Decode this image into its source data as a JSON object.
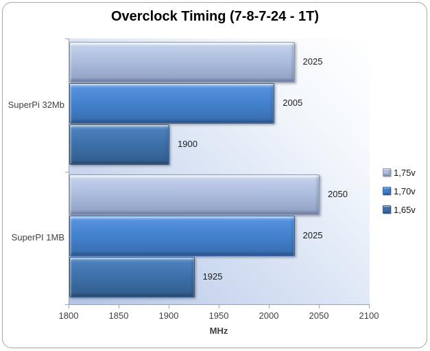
{
  "chart_data": {
    "type": "bar",
    "orientation": "horizontal",
    "title": "Overclock Timing (7-8-7-24 - 1T)",
    "categories": [
      "SuperPi 32Mb",
      "SuperPI 1MB"
    ],
    "series": [
      {
        "name": "1,75v",
        "values": [
          2025,
          2050
        ],
        "color": "#aebedf"
      },
      {
        "name": "1,70v",
        "values": [
          2005,
          2025
        ],
        "color": "#4381cd"
      },
      {
        "name": "1,65v",
        "values": [
          1900,
          1925
        ],
        "color": "#3d6fa9"
      }
    ],
    "xlabel": "MHz",
    "xlim": [
      1800,
      2100
    ],
    "xticks": [
      1800,
      1850,
      1900,
      1950,
      2000,
      2050,
      2100
    ],
    "data_labels_shown": true,
    "legend_position": "right",
    "grid": false,
    "plot_fill_gradient": [
      "#b3c5e6",
      "#ffffff"
    ],
    "frame_border_color": "#a6a6a6",
    "axis_line_color": "#9aa2ae",
    "tick_label_color": "#3f3f3f"
  }
}
